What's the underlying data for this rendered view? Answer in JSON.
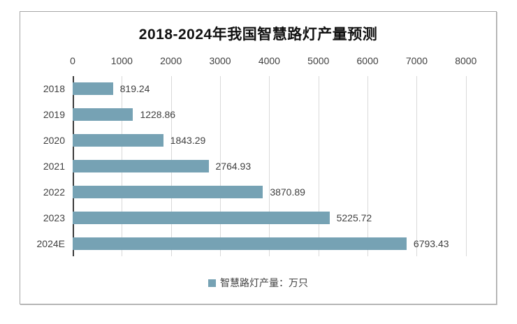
{
  "chart_data": {
    "type": "bar",
    "orientation": "horizontal",
    "title": "2018-2024年我国智慧路灯产量预测",
    "categories": [
      "2018",
      "2019",
      "2020",
      "2021",
      "2022",
      "2023",
      "2024E"
    ],
    "values": [
      819.24,
      1228.86,
      1843.29,
      2764.93,
      3870.89,
      5225.72,
      6793.43
    ],
    "value_labels": [
      "819.24",
      "1228.86",
      "1843.29",
      "2764.93",
      "3870.89",
      "5225.72",
      "6793.43"
    ],
    "series_name": "智慧路灯产量：万只",
    "x_ticks": [
      0,
      1000,
      2000,
      3000,
      4000,
      5000,
      6000,
      7000,
      8000
    ],
    "xlim": [
      0,
      8600
    ],
    "grid": "vertical",
    "legend_position": "bottom"
  },
  "legend": {
    "label": "智慧路灯产量：万只"
  },
  "colors": {
    "bar": "#76A2B4",
    "gridline": "#D9D9D9",
    "axis_line": "#3A3A3A",
    "text": "#404040",
    "title": "#111111",
    "border": "#A6A6A6",
    "background": "#FFFFFF"
  }
}
